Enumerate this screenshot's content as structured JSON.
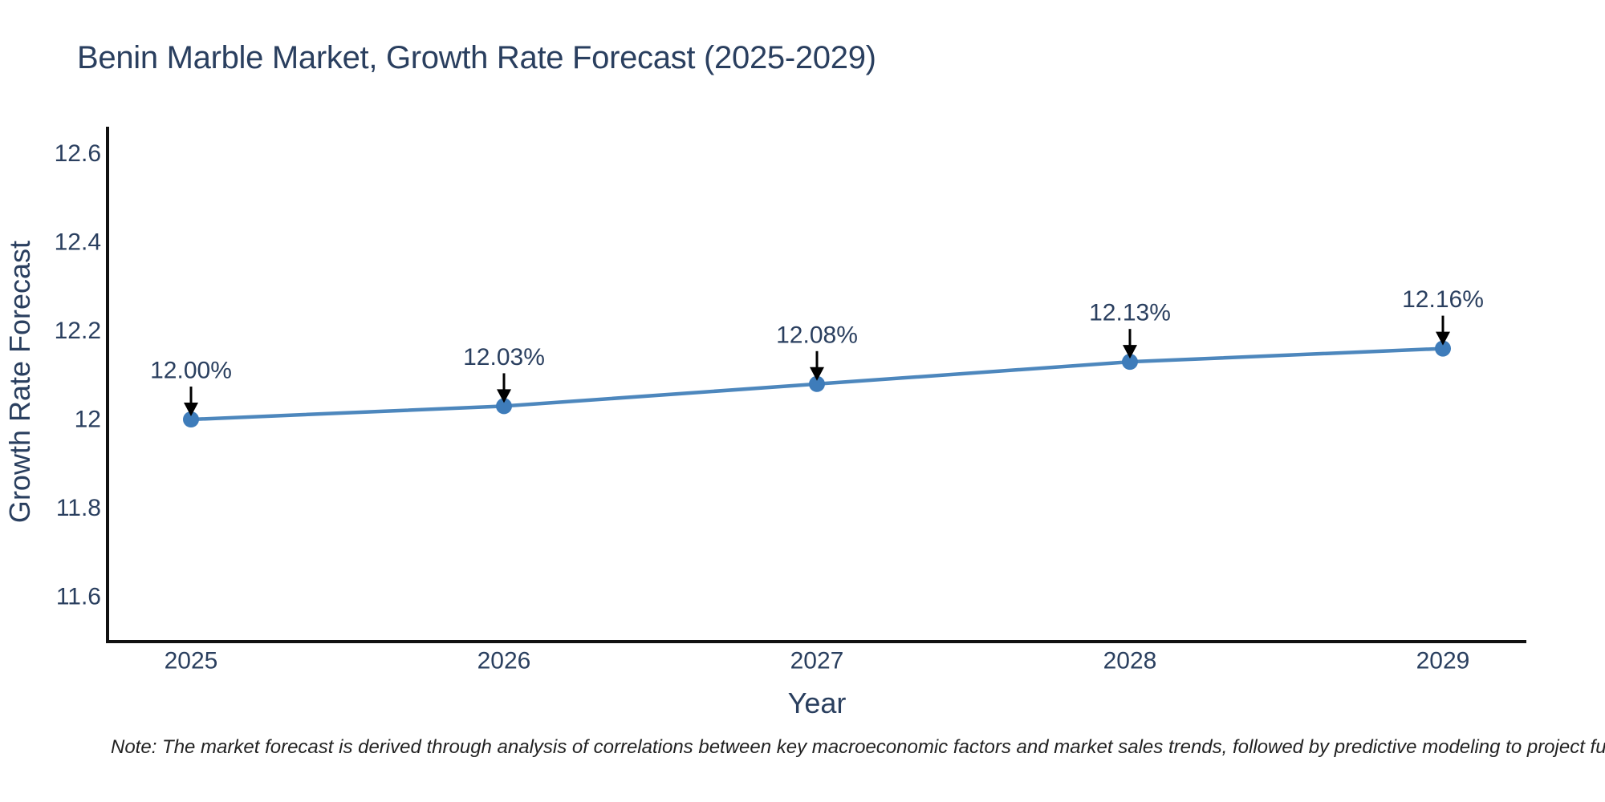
{
  "title": "Benin Marble Market, Growth Rate Forecast (2025-2029)",
  "note": "Note: The market forecast is derived through analysis of correlations between key macroeconomic factors and market sales trends, followed by predictive modeling to project future sal",
  "chart_data": {
    "type": "line",
    "title": "Benin Marble Market, Growth Rate Forecast (2025-2029)",
    "xlabel": "Year",
    "ylabel": "Growth Rate Forecast",
    "x": [
      2025,
      2026,
      2027,
      2028,
      2029
    ],
    "values": [
      12.0,
      12.03,
      12.08,
      12.13,
      12.16
    ],
    "point_labels": [
      "12.00%",
      "12.03%",
      "12.08%",
      "12.13%",
      "12.16%"
    ],
    "xtick_labels": [
      "2025",
      "2026",
      "2027",
      "2028",
      "2029"
    ],
    "ytick_values": [
      12.6,
      12.4,
      12.2,
      12.0,
      11.8,
      11.6
    ],
    "ytick_labels": [
      "12.6",
      "12.4",
      "12.2",
      "12",
      "11.8",
      "11.6"
    ],
    "xlim": [
      2024.73,
      2029.27
    ],
    "ylim": [
      11.5,
      12.66
    ],
    "grid": false,
    "legend": false,
    "colors": {
      "line": "#4d87bd",
      "marker": "#3e7cba",
      "axis": "#111111",
      "tick_text": "#2a3f5f",
      "annotation_text": "#2a3f5f",
      "arrow": "#000000",
      "title_text": "#2a3f5f",
      "background": "#ffffff"
    }
  }
}
